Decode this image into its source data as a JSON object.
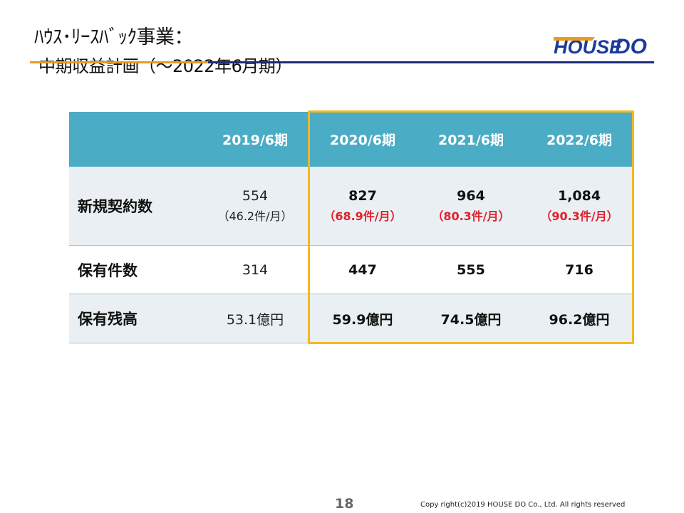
{
  "header": {
    "title_main": "ﾊｳｽ･ﾘｰｽﾊﾞｯｸ事業：",
    "title_sub": "中期収益計画（～2022年6月期）"
  },
  "logo": {
    "text_left": "HOUSE",
    "text_right": "DO"
  },
  "colors": {
    "accent_orange": "#e99b1f",
    "accent_navy": "#1c2b78",
    "table_header": "#4bacc6",
    "highlight": "#f3b822",
    "plan_red": "#e0202a"
  },
  "table": {
    "columns": [
      "",
      "2019/6期",
      "2020/6期",
      "2021/6期",
      "2022/6期"
    ],
    "rows": [
      {
        "label": "新規契約数",
        "cells": [
          {
            "value": "554",
            "sub": "（46.2件/月）"
          },
          {
            "value": "827",
            "sub": "（68.9件/月）"
          },
          {
            "value": "964",
            "sub": "（80.3件/月）"
          },
          {
            "value": "1,084",
            "sub": "（90.3件/月）"
          }
        ]
      },
      {
        "label": "保有件数",
        "cells": [
          {
            "value": "314"
          },
          {
            "value": "447"
          },
          {
            "value": "555"
          },
          {
            "value": "716"
          }
        ]
      },
      {
        "label": "保有残高",
        "cells": [
          {
            "value": "53.1億円"
          },
          {
            "value": "59.9億円"
          },
          {
            "value": "74.5億円"
          },
          {
            "value": "96.2億円"
          }
        ]
      }
    ]
  },
  "footer": {
    "page_number": "18",
    "copyright": "Copy right(c)2019  HOUSE  DO Co., Ltd.  All rights reserved"
  }
}
